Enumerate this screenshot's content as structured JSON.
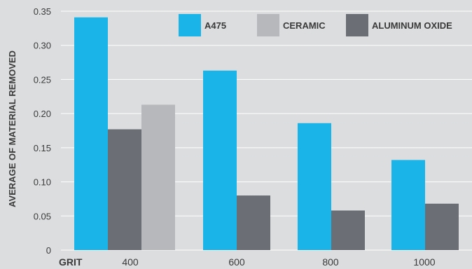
{
  "chart_data": {
    "type": "bar",
    "xlabel": "GRIT",
    "ylabel": "AVERAGE OF MATERIAL REMOVED",
    "categories": [
      "400",
      "600",
      "800",
      "1000"
    ],
    "series": [
      {
        "name": "A475",
        "color": "#1ab4e8",
        "values": [
          0.341,
          0.263,
          0.186,
          0.132
        ]
      },
      {
        "name": "ALUMINUM OXIDE",
        "color": "#6b6f75",
        "values": [
          0.177,
          0.08,
          0.058,
          0.068
        ]
      },
      {
        "name": "CERAMIC",
        "color": "#b6b8bc",
        "values": [
          0.213,
          null,
          null,
          null
        ]
      }
    ],
    "legend_order": [
      "A475",
      "CERAMIC",
      "ALUMINUM OXIDE"
    ],
    "legend_position": "top-right",
    "ylim": [
      0,
      0.35
    ],
    "yticks": [
      "0",
      "0.05",
      "0.10",
      "0.15",
      "0.20",
      "0.25",
      "0.30",
      "0.35"
    ],
    "grid": true,
    "background": "#dcdddf"
  }
}
